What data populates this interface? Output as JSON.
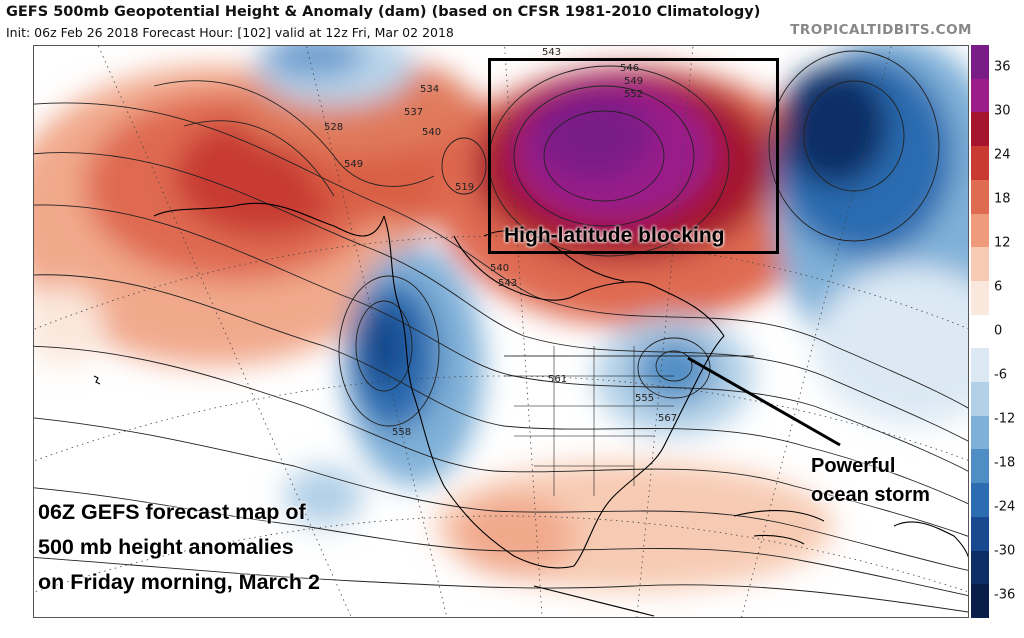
{
  "header": {
    "title": "GEFS 500mb Geopotential Height & Anomaly (dam) (based on CFSR 1981-2010 Climatology)",
    "subtitle": "Init: 06z Feb 26 2018   Forecast Hour: [102]   valid at 12z Fri, Mar 02 2018",
    "brand": "TROPICALTIDBITS.COM"
  },
  "colorbar": {
    "ticks": [
      36,
      30,
      24,
      18,
      12,
      6,
      0,
      -6,
      -12,
      -18,
      -24,
      -30,
      -36
    ],
    "colors": [
      "#7a1c87",
      "#9a1d8a",
      "#a5152e",
      "#c83a32",
      "#df6b51",
      "#ee9b7c",
      "#f7cbb3",
      "#fbe8dc",
      "#ffffff",
      "#dce9f4",
      "#b2d0e7",
      "#7fb0d8",
      "#4f8ec5",
      "#2c6cb0",
      "#18488e",
      "#0d2d66",
      "#0a1e4a"
    ]
  },
  "contour_labels": [
    "543",
    "546",
    "549",
    "552",
    "528",
    "534",
    "537",
    "540",
    "549",
    "519",
    "540",
    "543",
    "561",
    "555",
    "567",
    "558"
  ],
  "annotations": {
    "blocking": "High-latitude blocking",
    "storm_line1": "Powerful",
    "storm_line2": "ocean storm",
    "caption_line1": "06Z GEFS forecast map of",
    "caption_line2": "500 mb height anomalies",
    "caption_line3": "on Friday morning, March 2"
  }
}
